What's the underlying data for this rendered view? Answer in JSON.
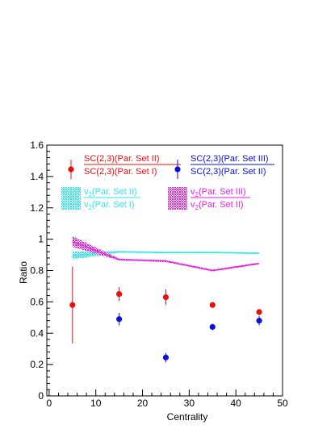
{
  "chart_data": {
    "type": "scatter",
    "xlabel": "Centrality",
    "ylabel": "Ratio",
    "xlim": [
      -0.5,
      50
    ],
    "ylim": [
      0,
      1.6
    ],
    "x_ticks": [
      0,
      10,
      20,
      30,
      40,
      50
    ],
    "y_ticks": [
      0,
      0.2,
      0.4,
      0.6,
      0.8,
      1,
      1.2,
      1.4,
      1.6
    ],
    "x_tick_labels": [
      "0",
      "10",
      "20",
      "30",
      "40",
      "50"
    ],
    "y_tick_labels": [
      "0",
      "0.2",
      "0.4",
      "0.6",
      "0.8",
      "1",
      "1.2",
      "1.4",
      "1.6"
    ],
    "grid": false,
    "legend_position": "top",
    "legend": [
      {
        "num": "SC(2,3)(Par. Set II)",
        "den": "SC(2,3)(Par. Set I)",
        "color": "#e8100f",
        "kind": "marker"
      },
      {
        "num": "SC(2,3)(Par. Set III)",
        "den": "SC(2,3)(Par. Set II)",
        "color": "#0b12d8",
        "kind": "marker"
      },
      {
        "num": "v2(Par. Set II)",
        "den": "v2(Par. Set I)",
        "color": "#2fe8ea",
        "kind": "band"
      },
      {
        "num": "v2(Par. Set III)",
        "den": "v2(Par. Set II)",
        "color": "#e81ee8",
        "kind": "band"
      }
    ],
    "series": [
      {
        "kind": "points",
        "color": "#e8100f",
        "x": [
          5,
          15,
          25,
          35,
          45
        ],
        "y": [
          0.58,
          0.65,
          0.63,
          0.58,
          0.535
        ],
        "err": [
          0.245,
          0.045,
          0.05,
          0.015,
          0.02
        ]
      },
      {
        "kind": "points",
        "color": "#0b12d8",
        "x": [
          15,
          25,
          35,
          45
        ],
        "y": [
          0.49,
          0.245,
          0.44,
          0.48
        ],
        "err": [
          0.04,
          0.03,
          0.02,
          0.03
        ]
      },
      {
        "kind": "band",
        "color": "#2fe8ea",
        "x": [
          5,
          15,
          25,
          35,
          45
        ],
        "y": [
          0.895,
          0.92,
          0.915,
          0.915,
          0.91
        ],
        "err": [
          0.025,
          0.006,
          0.005,
          0.005,
          0.005
        ]
      },
      {
        "kind": "band",
        "color": "#e81ee8",
        "x": [
          5,
          15,
          25,
          35,
          45
        ],
        "y": [
          0.985,
          0.87,
          0.86,
          0.8,
          0.845
        ],
        "err": [
          0.035,
          0.006,
          0.006,
          0.006,
          0.006
        ]
      }
    ]
  }
}
